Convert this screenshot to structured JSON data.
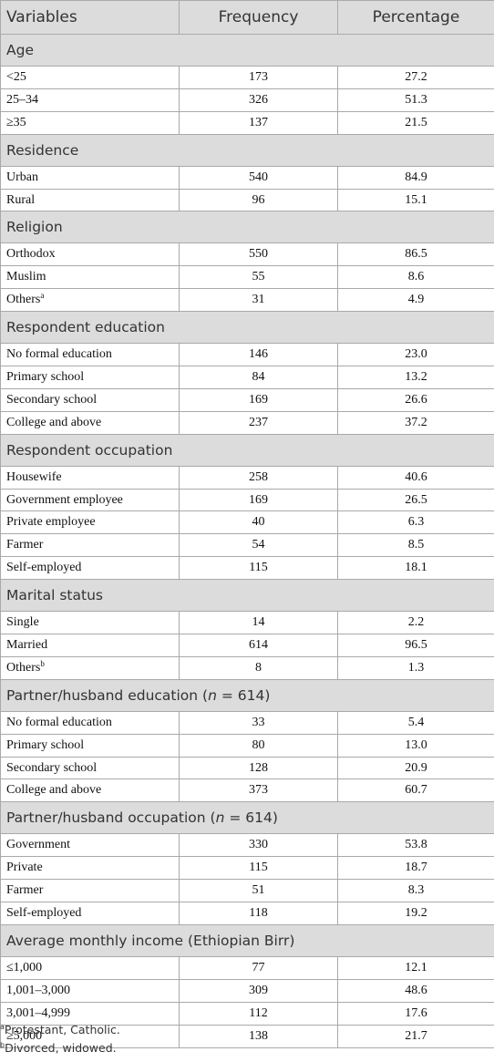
{
  "header": {
    "variables": "Variables",
    "frequency": "Frequency",
    "percentage": "Percentage"
  },
  "sections": [
    {
      "title": "Age",
      "rows": [
        {
          "label": "<25",
          "freq": "173",
          "pct": "27.2"
        },
        {
          "label": "25–34",
          "freq": "326",
          "pct": "51.3"
        },
        {
          "label": "≥35",
          "freq": "137",
          "pct": "21.5"
        }
      ]
    },
    {
      "title": "Residence",
      "rows": [
        {
          "label": "Urban",
          "freq": "540",
          "pct": "84.9"
        },
        {
          "label": "Rural",
          "freq": "96",
          "pct": "15.1"
        }
      ]
    },
    {
      "title": "Religion",
      "rows": [
        {
          "label": "Orthodox",
          "freq": "550",
          "pct": "86.5"
        },
        {
          "label": "Muslim",
          "freq": "55",
          "pct": "8.6"
        },
        {
          "label": "Others",
          "sup": "a",
          "freq": "31",
          "pct": "4.9"
        }
      ]
    },
    {
      "title": "Respondent education",
      "rows": [
        {
          "label": "No formal education",
          "freq": "146",
          "pct": "23.0"
        },
        {
          "label": "Primary school",
          "freq": "84",
          "pct": "13.2"
        },
        {
          "label": "Secondary school",
          "freq": "169",
          "pct": "26.6"
        },
        {
          "label": "College and above",
          "freq": "237",
          "pct": "37.2"
        }
      ]
    },
    {
      "title": "Respondent occupation",
      "rows": [
        {
          "label": "Housewife",
          "freq": "258",
          "pct": "40.6"
        },
        {
          "label": "Government employee",
          "freq": "169",
          "pct": "26.5"
        },
        {
          "label": "Private employee",
          "freq": "40",
          "pct": "6.3"
        },
        {
          "label": "Farmer",
          "freq": "54",
          "pct": "8.5"
        },
        {
          "label": "Self-employed",
          "freq": "115",
          "pct": "18.1"
        }
      ]
    },
    {
      "title": "Marital status",
      "rows": [
        {
          "label": "Single",
          "freq": "14",
          "pct": "2.2"
        },
        {
          "label": "Married",
          "freq": "614",
          "pct": "96.5"
        },
        {
          "label": "Others",
          "sup": "b",
          "freq": "8",
          "pct": "1.3"
        }
      ]
    },
    {
      "title": "Partner/husband education (n = 614)",
      "title_main": "Partner/husband education (",
      "title_italic": "n",
      "title_rest": " = 614)",
      "rows": [
        {
          "label": "No formal education",
          "freq": "33",
          "pct": "5.4"
        },
        {
          "label": "Primary school",
          "freq": "80",
          "pct": "13.0"
        },
        {
          "label": "Secondary school",
          "freq": "128",
          "pct": "20.9"
        },
        {
          "label": "College and above",
          "freq": "373",
          "pct": "60.7"
        }
      ]
    },
    {
      "title": "Partner/husband occupation (n = 614)",
      "title_main": "Partner/husband occupation (",
      "title_italic": "n",
      "title_rest": " = 614)",
      "rows": [
        {
          "label": "Government",
          "freq": "330",
          "pct": "53.8"
        },
        {
          "label": "Private",
          "freq": "115",
          "pct": "18.7"
        },
        {
          "label": "Farmer",
          "freq": "51",
          "pct": "8.3"
        },
        {
          "label": "Self-employed",
          "freq": "118",
          "pct": "19.2"
        }
      ]
    },
    {
      "title": "Average monthly income (Ethiopian Birr)",
      "rows": [
        {
          "label": "≤1,000",
          "freq": "77",
          "pct": "12.1"
        },
        {
          "label": "1,001–3,000",
          "freq": "309",
          "pct": "48.6"
        },
        {
          "label": "3,001–4,999",
          "freq": "112",
          "pct": "17.6"
        },
        {
          "label": "≥5,000",
          "freq": "138",
          "pct": "21.7"
        }
      ]
    }
  ],
  "footnotes": [
    {
      "mark": "a",
      "text": "Protestant, Catholic."
    },
    {
      "mark": "b",
      "text": "Divorced, widowed."
    }
  ]
}
